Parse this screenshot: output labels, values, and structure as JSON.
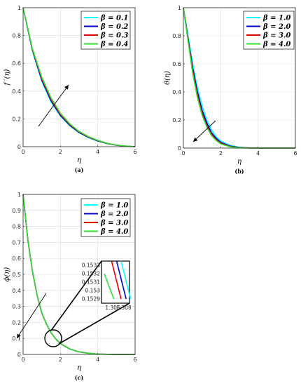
{
  "chart_data": [
    {
      "type": "line",
      "caption": "(a)",
      "xlabel": "η",
      "ylabel": "f ′(η)",
      "xlim": [
        0,
        6
      ],
      "ylim": [
        0,
        1
      ],
      "xticks": [
        "0",
        "2",
        "4",
        "6"
      ],
      "yticks": [
        "0",
        "0.2",
        "0.4",
        "0.6",
        "0.8",
        "1"
      ],
      "grid": true,
      "legend_position": "top-right",
      "x": [
        0,
        0.5,
        1,
        1.5,
        2,
        2.5,
        3,
        3.5,
        4,
        4.5,
        5,
        5.5,
        6
      ],
      "series": [
        {
          "name": "β = 0.1",
          "color": "#00FFFF",
          "values": [
            1.0,
            0.69,
            0.47,
            0.32,
            0.22,
            0.15,
            0.1,
            0.065,
            0.04,
            0.022,
            0.01,
            0.004,
            0.0
          ]
        },
        {
          "name": "β = 0.2",
          "color": "#0000CC",
          "values": [
            1.0,
            0.695,
            0.48,
            0.33,
            0.225,
            0.155,
            0.103,
            0.068,
            0.042,
            0.023,
            0.011,
            0.004,
            0.0
          ]
        },
        {
          "name": "β = 0.3",
          "color": "#E00000",
          "values": [
            1.0,
            0.7,
            0.49,
            0.34,
            0.232,
            0.16,
            0.107,
            0.07,
            0.044,
            0.024,
            0.011,
            0.004,
            0.0
          ]
        },
        {
          "name": "β = 0.4",
          "color": "#33DD33",
          "values": [
            1.0,
            0.705,
            0.5,
            0.35,
            0.24,
            0.165,
            0.11,
            0.073,
            0.046,
            0.025,
            0.012,
            0.005,
            0.0
          ]
        }
      ],
      "annotation": "arrow pointing up-right indicating increasing β"
    },
    {
      "type": "line",
      "caption": "(b)",
      "xlabel": "η",
      "ylabel": "θ(η)",
      "xlim": [
        0,
        6
      ],
      "ylim": [
        0,
        1
      ],
      "xticks": [
        "0",
        "2",
        "4",
        "6"
      ],
      "yticks": [
        "0",
        "0.2",
        "0.4",
        "0.6",
        "0.8",
        "1"
      ],
      "grid": true,
      "legend_position": "top-right",
      "x": [
        0,
        0.25,
        0.5,
        0.75,
        1,
        1.25,
        1.5,
        1.75,
        2,
        2.5,
        3,
        3.5,
        4,
        5,
        6
      ],
      "series": [
        {
          "name": "β = 1.0",
          "color": "#00FFFF",
          "values": [
            1.0,
            0.8,
            0.6,
            0.43,
            0.3,
            0.2,
            0.13,
            0.08,
            0.05,
            0.018,
            0.006,
            0.002,
            0.0,
            0.0,
            0.0
          ]
        },
        {
          "name": "β = 2.0",
          "color": "#0000CC",
          "values": [
            1.0,
            0.78,
            0.57,
            0.4,
            0.27,
            0.18,
            0.11,
            0.07,
            0.04,
            0.014,
            0.004,
            0.001,
            0.0,
            0.0,
            0.0
          ]
        },
        {
          "name": "β = 3.0",
          "color": "#E00000",
          "values": [
            1.0,
            0.77,
            0.55,
            0.38,
            0.25,
            0.16,
            0.1,
            0.06,
            0.035,
            0.011,
            0.003,
            0.001,
            0.0,
            0.0,
            0.0
          ]
        },
        {
          "name": "β = 4.0",
          "color": "#33DD33",
          "values": [
            1.0,
            0.76,
            0.53,
            0.36,
            0.235,
            0.15,
            0.09,
            0.055,
            0.03,
            0.009,
            0.002,
            0.0,
            0.0,
            0.0,
            0.0
          ]
        }
      ],
      "annotation": "arrow pointing down-left indicating increasing β"
    },
    {
      "type": "line",
      "caption": "(c)",
      "xlabel": "η",
      "ylabel": "ϕ(η)",
      "xlim": [
        0,
        6
      ],
      "ylim": [
        0,
        1
      ],
      "xticks": [
        "0",
        "2",
        "4",
        "6"
      ],
      "yticks": [
        "0",
        "0.1",
        "0.2",
        "0.3",
        "0.4",
        "0.5",
        "0.6",
        "0.7",
        "0.8",
        "0.9",
        "1"
      ],
      "grid": true,
      "legend_position": "top-right",
      "x": [
        0,
        0.25,
        0.5,
        0.75,
        1,
        1.25,
        1.5,
        1.75,
        2,
        2.5,
        3,
        3.5,
        4,
        5,
        6
      ],
      "series": [
        {
          "name": "β = 1.0",
          "color": "#00FFFF",
          "values": [
            1.0,
            0.72,
            0.52,
            0.37,
            0.26,
            0.19,
            0.135,
            0.097,
            0.068,
            0.034,
            0.016,
            0.007,
            0.002,
            0.0,
            0.0
          ]
        },
        {
          "name": "β = 2.0",
          "color": "#0000CC",
          "values": [
            1.0,
            0.72,
            0.52,
            0.37,
            0.26,
            0.19,
            0.135,
            0.097,
            0.068,
            0.034,
            0.016,
            0.007,
            0.002,
            0.0,
            0.0
          ]
        },
        {
          "name": "β = 3.0",
          "color": "#E00000",
          "values": [
            1.0,
            0.72,
            0.52,
            0.37,
            0.26,
            0.19,
            0.135,
            0.097,
            0.068,
            0.034,
            0.016,
            0.007,
            0.002,
            0.0,
            0.0
          ]
        },
        {
          "name": "β = 4.0",
          "color": "#33DD33",
          "values": [
            1.0,
            0.72,
            0.52,
            0.37,
            0.26,
            0.19,
            0.135,
            0.097,
            0.068,
            0.034,
            0.016,
            0.007,
            0.002,
            0.0,
            0.0
          ]
        }
      ],
      "inset": {
        "type": "line",
        "xlim": [
          1.304,
          1.309
        ],
        "ylim": [
          0.15285,
          0.15335
        ],
        "xticks": [
          "1.306",
          "1.308"
        ],
        "yticks": [
          "0.1529",
          "0.153",
          "0.1531",
          "0.1532",
          "0.1533"
        ],
        "series": [
          {
            "name": "β = 1.0",
            "color": "#00FFFF",
            "x": [
              1.3075,
              1.3092
            ],
            "values": [
              0.15335,
              0.1529
            ]
          },
          {
            "name": "β = 2.0",
            "color": "#0000CC",
            "x": [
              1.3067,
              1.3084
            ],
            "values": [
              0.15335,
              0.1529
            ]
          },
          {
            "name": "β = 3.0",
            "color": "#E00000",
            "x": [
              1.3058,
              1.3075
            ],
            "values": [
              0.15335,
              0.1529
            ]
          },
          {
            "name": "β = 4.0",
            "color": "#33DD33",
            "x": [
              1.3045,
              1.3062
            ],
            "values": [
              0.1532,
              0.1529
            ]
          }
        ]
      },
      "annotation": "arrow pointing down-left indicating increasing β; circle near η≈1.5 magnified in inset"
    }
  ]
}
